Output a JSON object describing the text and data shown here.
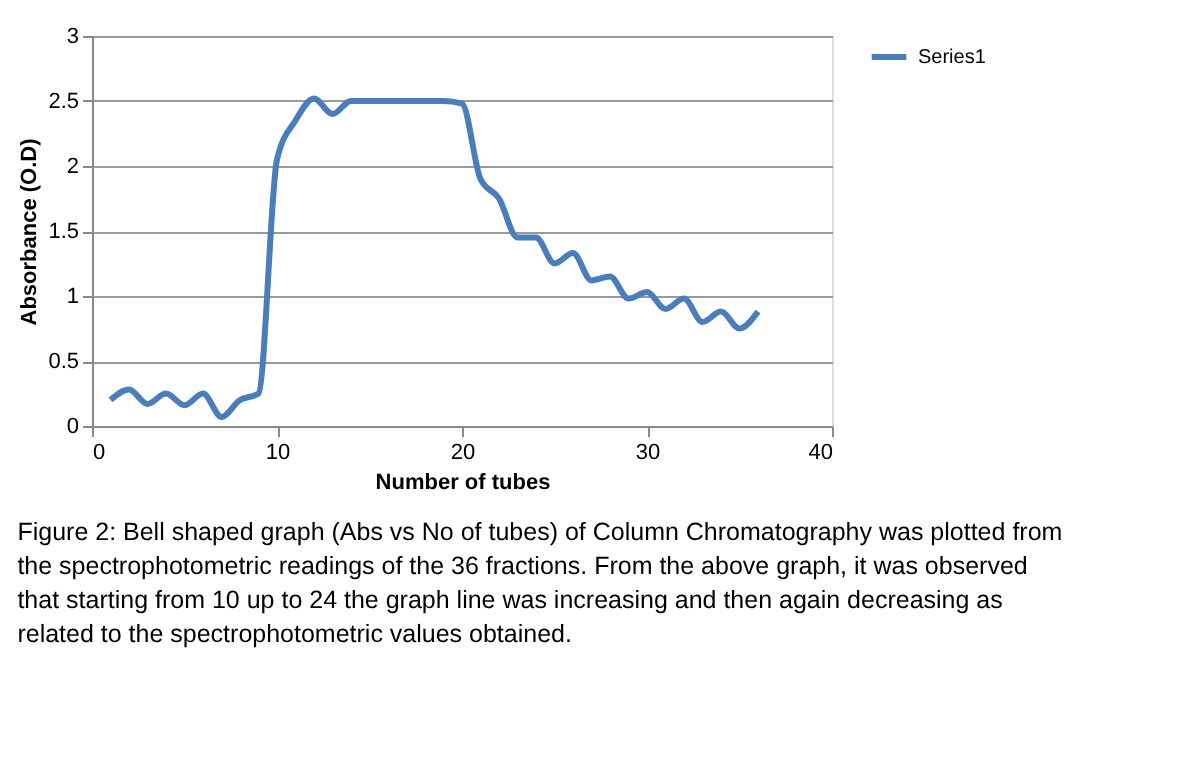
{
  "chart_data": {
    "type": "line",
    "xlabel": "Number of tubes",
    "ylabel": "Absorbance (O.D)",
    "x": [
      1,
      2,
      3,
      4,
      5,
      6,
      7,
      8,
      9,
      10,
      11,
      12,
      13,
      14,
      15,
      16,
      17,
      18,
      19,
      20,
      21,
      22,
      23,
      24,
      25,
      26,
      27,
      28,
      29,
      30,
      31,
      32,
      33,
      34,
      35,
      36
    ],
    "series": [
      {
        "name": "Series1",
        "color": "#4a7ebb",
        "values": [
          0.2,
          0.28,
          0.17,
          0.25,
          0.16,
          0.25,
          0.07,
          0.2,
          0.25,
          2.05,
          2.35,
          2.52,
          2.4,
          2.5,
          2.5,
          2.5,
          2.5,
          2.5,
          2.5,
          2.48,
          1.9,
          1.75,
          1.45,
          1.45,
          1.25,
          1.33,
          1.12,
          1.15,
          0.98,
          1.03,
          0.9,
          0.98,
          0.8,
          0.88,
          0.75,
          0.88
        ]
      }
    ],
    "xlim": [
      0,
      40
    ],
    "xticks": [
      0,
      10,
      20,
      30,
      40
    ],
    "ylim": [
      0,
      3
    ],
    "yticks": [
      0,
      0.5,
      1,
      1.5,
      2,
      2.5,
      3
    ],
    "grid": "y",
    "legend": "right",
    "marker": "none",
    "line_style": "solid",
    "annotations": [
      "Figure 2: Bell shaped graph (Abs vs No of tubes) of Column Chromatography was plotted from the spectrophotometric readings of the 36 fractions. From the above graph, it was observed that starting from 10 up to 24 the graph line was increasing and then again decreasing as related to the spectrophotometric values obtained."
    ]
  }
}
